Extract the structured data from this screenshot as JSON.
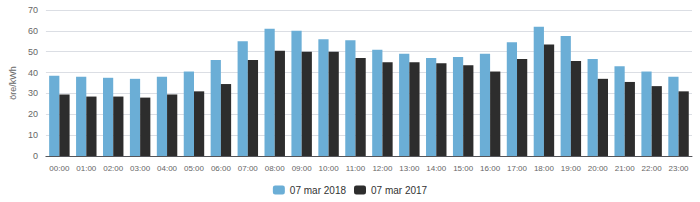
{
  "chart_data": {
    "type": "bar",
    "categories": [
      "00:00",
      "01:00",
      "02:00",
      "03:00",
      "04:00",
      "05:00",
      "06:00",
      "07:00",
      "08:00",
      "09:00",
      "10:00",
      "11:00",
      "12:00",
      "13:00",
      "14:00",
      "15:00",
      "16:00",
      "17:00",
      "18:00",
      "19:00",
      "20:00",
      "21:00",
      "22:00",
      "23:00"
    ],
    "series": [
      {
        "name": "07 mar 2018",
        "color": "#6baed6",
        "values": [
          38.5,
          38.0,
          37.5,
          37.0,
          38.0,
          40.5,
          46.0,
          55.0,
          61.0,
          60.0,
          56.0,
          55.5,
          51.0,
          49.0,
          47.0,
          47.5,
          49.0,
          54.5,
          62.0,
          57.5,
          46.5,
          43.0,
          40.5,
          38.0
        ]
      },
      {
        "name": "07 mar 2017",
        "color": "#2d2d2d",
        "values": [
          29.5,
          28.5,
          28.5,
          28.0,
          29.5,
          31.0,
          34.5,
          46.0,
          50.5,
          50.0,
          50.0,
          47.0,
          45.0,
          45.0,
          44.5,
          43.5,
          40.5,
          46.5,
          53.5,
          45.5,
          37.0,
          35.5,
          33.5,
          31.0
        ]
      }
    ],
    "ylabel": "öre/kWh",
    "ylim": [
      0,
      70
    ],
    "yticks": [
      0,
      10,
      20,
      30,
      40,
      50,
      60,
      70
    ],
    "grid": true,
    "legend": "bottom"
  }
}
